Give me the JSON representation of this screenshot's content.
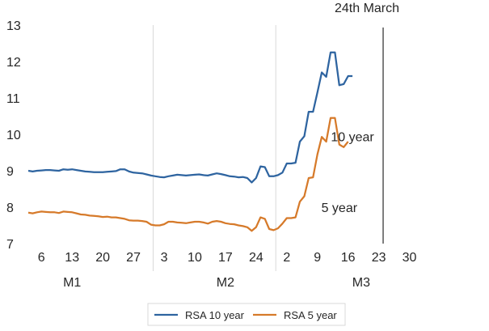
{
  "chart_data": {
    "type": "line",
    "yticks": [
      "13",
      "12",
      "11",
      "10",
      "9",
      "8",
      "7"
    ],
    "ylim": [
      7,
      13
    ],
    "xlim": [
      0,
      100
    ],
    "xticks": [
      {
        "label": "6",
        "x": 3
      },
      {
        "label": "13",
        "x": 10
      },
      {
        "label": "20",
        "x": 17
      },
      {
        "label": "27",
        "x": 24
      },
      {
        "label": "3",
        "x": 31
      },
      {
        "label": "10",
        "x": 38
      },
      {
        "label": "17",
        "x": 45
      },
      {
        "label": "24",
        "x": 52
      },
      {
        "label": "2",
        "x": 59
      },
      {
        "label": "9",
        "x": 66
      },
      {
        "label": "16",
        "x": 73
      },
      {
        "label": "23",
        "x": 80
      },
      {
        "label": "30",
        "x": 87
      }
    ],
    "month_labels": [
      {
        "label": "M1",
        "x": 10
      },
      {
        "label": "M2",
        "x": 45
      },
      {
        "label": "M3",
        "x": 76
      }
    ],
    "month_dividers": [
      28.5,
      56.5
    ],
    "marker": {
      "label": "24th March",
      "x": 81
    },
    "annotations": [
      {
        "label": "10 year",
        "x": 74,
        "y": 9.95
      },
      {
        "label": "5 year",
        "x": 71,
        "y": 8.0
      }
    ],
    "grid": "vertical month dividers only",
    "legend_position": "bottom",
    "series": [
      {
        "name": "RSA 10 year",
        "color": "#2e64a0",
        "points": [
          [
            0,
            9.0
          ],
          [
            1,
            8.98
          ],
          [
            2,
            9.0
          ],
          [
            3,
            9.01
          ],
          [
            4,
            9.02
          ],
          [
            5,
            9.02
          ],
          [
            6,
            9.01
          ],
          [
            7,
            9.0
          ],
          [
            8,
            9.04
          ],
          [
            9,
            9.03
          ],
          [
            10,
            9.04
          ],
          [
            11,
            9.02
          ],
          [
            12,
            9.0
          ],
          [
            13,
            8.98
          ],
          [
            14,
            8.97
          ],
          [
            15,
            8.96
          ],
          [
            16,
            8.96
          ],
          [
            17,
            8.96
          ],
          [
            18,
            8.97
          ],
          [
            19,
            8.98
          ],
          [
            20,
            8.99
          ],
          [
            21,
            9.04
          ],
          [
            22,
            9.04
          ],
          [
            23,
            8.98
          ],
          [
            24,
            8.95
          ],
          [
            25,
            8.94
          ],
          [
            26,
            8.93
          ],
          [
            27,
            8.9
          ],
          [
            28,
            8.87
          ],
          [
            29,
            8.85
          ],
          [
            30,
            8.83
          ],
          [
            31,
            8.82
          ],
          [
            32,
            8.85
          ],
          [
            33,
            8.87
          ],
          [
            34,
            8.89
          ],
          [
            35,
            8.88
          ],
          [
            36,
            8.87
          ],
          [
            37,
            8.88
          ],
          [
            38,
            8.89
          ],
          [
            39,
            8.9
          ],
          [
            40,
            8.88
          ],
          [
            41,
            8.87
          ],
          [
            42,
            8.9
          ],
          [
            43,
            8.93
          ],
          [
            44,
            8.91
          ],
          [
            45,
            8.88
          ],
          [
            46,
            8.85
          ],
          [
            47,
            8.84
          ],
          [
            48,
            8.82
          ],
          [
            49,
            8.83
          ],
          [
            50,
            8.8
          ],
          [
            51,
            8.68
          ],
          [
            52,
            8.8
          ],
          [
            53,
            9.12
          ],
          [
            54,
            9.1
          ],
          [
            55,
            8.85
          ],
          [
            56,
            8.85
          ],
          [
            57,
            8.88
          ],
          [
            58,
            8.95
          ],
          [
            59,
            9.2
          ],
          [
            60,
            9.2
          ],
          [
            61,
            9.22
          ],
          [
            62,
            9.8
          ],
          [
            63,
            9.95
          ],
          [
            64,
            10.62
          ],
          [
            65,
            10.62
          ],
          [
            66,
            11.15
          ],
          [
            67,
            11.7
          ],
          [
            68,
            11.58
          ],
          [
            69,
            12.25
          ],
          [
            70,
            12.25
          ],
          [
            71,
            11.35
          ],
          [
            72,
            11.38
          ],
          [
            73,
            11.6
          ],
          [
            74,
            11.6
          ]
        ]
      },
      {
        "name": "RSA 5 year",
        "color": "#d67a2a",
        "points": [
          [
            0,
            7.85
          ],
          [
            1,
            7.83
          ],
          [
            2,
            7.86
          ],
          [
            3,
            7.88
          ],
          [
            4,
            7.87
          ],
          [
            5,
            7.86
          ],
          [
            6,
            7.86
          ],
          [
            7,
            7.84
          ],
          [
            8,
            7.88
          ],
          [
            9,
            7.87
          ],
          [
            10,
            7.86
          ],
          [
            11,
            7.83
          ],
          [
            12,
            7.8
          ],
          [
            13,
            7.79
          ],
          [
            14,
            7.77
          ],
          [
            15,
            7.76
          ],
          [
            16,
            7.75
          ],
          [
            17,
            7.73
          ],
          [
            18,
            7.74
          ],
          [
            19,
            7.72
          ],
          [
            20,
            7.72
          ],
          [
            21,
            7.7
          ],
          [
            22,
            7.68
          ],
          [
            23,
            7.64
          ],
          [
            24,
            7.63
          ],
          [
            25,
            7.63
          ],
          [
            26,
            7.62
          ],
          [
            27,
            7.6
          ],
          [
            28,
            7.52
          ],
          [
            29,
            7.5
          ],
          [
            30,
            7.5
          ],
          [
            31,
            7.53
          ],
          [
            32,
            7.6
          ],
          [
            33,
            7.6
          ],
          [
            34,
            7.58
          ],
          [
            35,
            7.57
          ],
          [
            36,
            7.56
          ],
          [
            37,
            7.58
          ],
          [
            38,
            7.6
          ],
          [
            39,
            7.6
          ],
          [
            40,
            7.58
          ],
          [
            41,
            7.55
          ],
          [
            42,
            7.6
          ],
          [
            43,
            7.62
          ],
          [
            44,
            7.6
          ],
          [
            45,
            7.56
          ],
          [
            46,
            7.54
          ],
          [
            47,
            7.53
          ],
          [
            48,
            7.5
          ],
          [
            49,
            7.48
          ],
          [
            50,
            7.45
          ],
          [
            51,
            7.35
          ],
          [
            52,
            7.45
          ],
          [
            53,
            7.72
          ],
          [
            54,
            7.68
          ],
          [
            55,
            7.4
          ],
          [
            56,
            7.37
          ],
          [
            57,
            7.42
          ],
          [
            58,
            7.55
          ],
          [
            59,
            7.7
          ],
          [
            60,
            7.7
          ],
          [
            61,
            7.72
          ],
          [
            62,
            8.15
          ],
          [
            63,
            8.3
          ],
          [
            64,
            8.8
          ],
          [
            65,
            8.82
          ],
          [
            66,
            9.45
          ],
          [
            67,
            9.93
          ],
          [
            68,
            9.8
          ],
          [
            69,
            10.45
          ],
          [
            70,
            10.45
          ],
          [
            71,
            9.72
          ],
          [
            72,
            9.65
          ],
          [
            73,
            9.8
          ]
        ]
      }
    ]
  }
}
